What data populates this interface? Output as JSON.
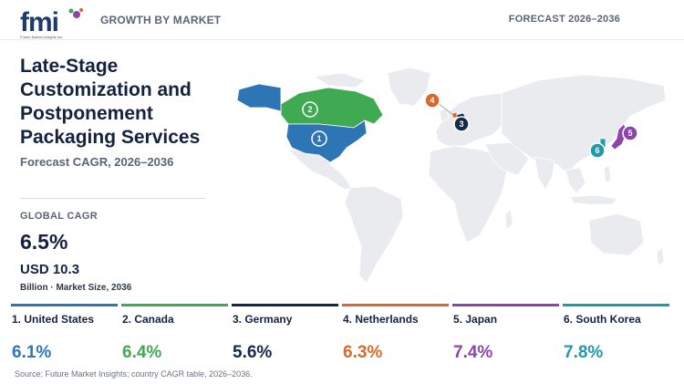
{
  "header": {
    "brand": "fmi",
    "brand_sub": "Future Market Insights Inc.",
    "left_label": "GROWTH BY MARKET",
    "right_label": "FORECAST 2026–2036"
  },
  "title": "Late-Stage Customization and Postponement Packaging Services",
  "subtitle": "Forecast CAGR, 2026–2036",
  "global": {
    "label": "GLOBAL CAGR",
    "value": "6.5%",
    "market_size": "USD 10.3",
    "market_size_label": "Billion · Market Size, 2036"
  },
  "countries": [
    {
      "name": "1. United States",
      "number": "1",
      "cagr": "6.1%",
      "color": "#2e75b6"
    },
    {
      "name": "2. Canada",
      "number": "2",
      "cagr": "6.4%",
      "color": "#3faa52"
    },
    {
      "name": "3. Germany",
      "number": "3",
      "cagr": "5.6%",
      "color": "#142a4a"
    },
    {
      "name": "4. Netherlands",
      "number": "4",
      "cagr": "6.3%",
      "color": "#d9692a"
    },
    {
      "name": "5. Japan",
      "number": "5",
      "cagr": "7.4%",
      "color": "#8e44ad"
    },
    {
      "name": "6. South Korea",
      "number": "6",
      "cagr": "7.8%",
      "color": "#1f9aa8"
    }
  ],
  "map": {
    "land_color": "#e9ebee"
  },
  "source": "Source: Future Market Insights; country CAGR table, 2026–2036."
}
